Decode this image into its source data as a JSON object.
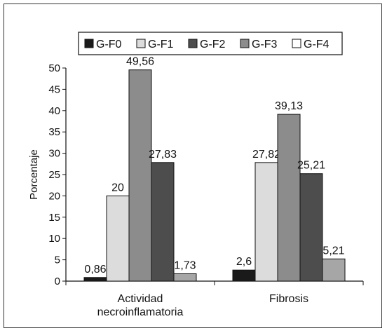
{
  "chart_data": {
    "type": "bar",
    "categories": [
      "Actividad\nnecroinflamatoria",
      "Fibrosis"
    ],
    "series": [
      {
        "name": "G-F0",
        "values": [
          0.86,
          2.6
        ],
        "labels": [
          "0,86",
          "2,6"
        ],
        "color": "#1a1a1a"
      },
      {
        "name": "G-F1",
        "values": [
          20,
          27.82
        ],
        "labels": [
          "20",
          "27,82"
        ],
        "color": "#dcdcdc"
      },
      {
        "name": "G-F2",
        "values": [
          49.56,
          39.13
        ],
        "labels": [
          "49,56",
          "39,13"
        ],
        "color": "#8c8c8c"
      },
      {
        "name": "G-F3",
        "values": [
          27.83,
          25.21
        ],
        "labels": [
          "27,83",
          "25,21"
        ],
        "color": "#4d4d4d"
      },
      {
        "name": "G-F4",
        "values": [
          1.73,
          5.21
        ],
        "labels": [
          "1,73",
          "5,21"
        ],
        "color": "#a6a6a6"
      }
    ],
    "ylabel": "Porcentaje",
    "ylim": [
      0,
      50
    ],
    "yticks": [
      0,
      5,
      10,
      15,
      20,
      25,
      30,
      35,
      40,
      45,
      50
    ],
    "grid": false,
    "legend": "top",
    "legend_swatches": [
      "#1a1a1a",
      "#dcdcdc",
      "#4d4d4d",
      "#8c8c8c",
      "#ffffff"
    ]
  }
}
